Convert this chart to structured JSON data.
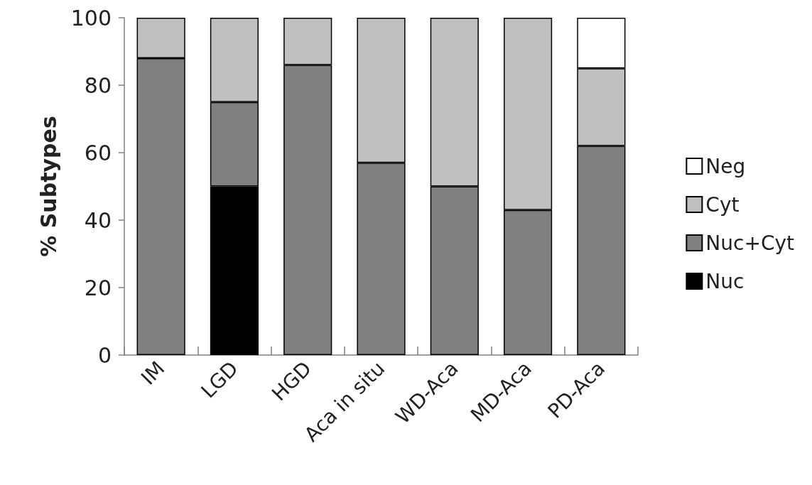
{
  "chart_data": {
    "type": "bar",
    "stacked": true,
    "ylabel": "% Subtypes",
    "categories": [
      "IM",
      "LGD",
      "HGD",
      "Aca in situ",
      "WD-Aca",
      "MD-Aca",
      "PD-Aca"
    ],
    "series": [
      {
        "name": "Nuc",
        "color": "#000000",
        "values": [
          null,
          50,
          null,
          null,
          null,
          null,
          null
        ]
      },
      {
        "name": "Nuc+Cyt",
        "color": "#808080",
        "values": [
          88,
          25,
          86,
          57,
          50,
          43,
          62
        ]
      },
      {
        "name": "Cyt",
        "color": "#c0c0c0",
        "values": [
          12,
          25,
          14,
          43,
          50,
          57,
          23
        ]
      },
      {
        "name": "Neg",
        "color": "#ffffff",
        "values": [
          null,
          null,
          null,
          null,
          null,
          null,
          15
        ]
      }
    ],
    "ylim": [
      0,
      100
    ],
    "yticks": [
      0,
      20,
      40,
      60,
      80,
      100
    ],
    "grid": false,
    "legend": "right"
  }
}
